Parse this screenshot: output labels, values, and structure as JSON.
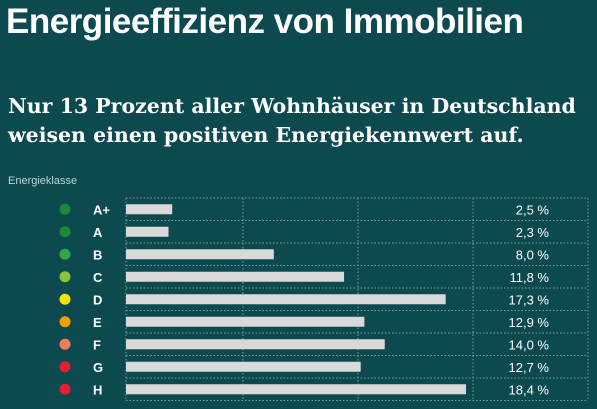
{
  "header": {
    "title": "Energieeffizienz von Immobilien",
    "subtitle": "Nur 13 Prozent aller Wohnhäuser in Deutschland weisen einen positiven Energiekennwert auf."
  },
  "chart_data": {
    "type": "bar",
    "orientation": "horizontal",
    "legend_title": "Energieklasse",
    "categories": [
      "A+",
      "A",
      "B",
      "C",
      "D",
      "E",
      "F",
      "G",
      "H"
    ],
    "values": [
      2.5,
      2.3,
      8.0,
      11.8,
      17.3,
      12.9,
      14.0,
      12.7,
      18.4
    ],
    "value_labels": [
      "2,5 %",
      "2,3 %",
      "8,0 %",
      "11,8 %",
      "17,3 %",
      "12,9 %",
      "14,0 %",
      "12,7 %",
      "18,4 %"
    ],
    "category_colors": [
      "#1c8a34",
      "#1c8a34",
      "#2fa84a",
      "#8cc43c",
      "#f2e400",
      "#f5a000",
      "#ef7d5c",
      "#e0202e",
      "#e0202e"
    ],
    "bar_color": "#d9d9d9",
    "xlim": [
      0,
      25
    ],
    "grid": true
  }
}
